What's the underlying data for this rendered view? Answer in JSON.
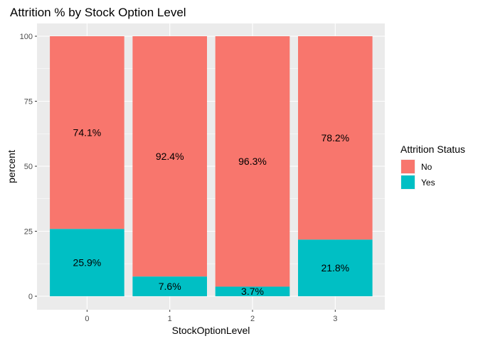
{
  "chart_data": {
    "type": "bar",
    "stacked": true,
    "title": "Attrition % by Stock Option Level",
    "xlabel": "StockOptionLevel",
    "ylabel": "percent",
    "categories": [
      "0",
      "1",
      "2",
      "3"
    ],
    "ylim": [
      0,
      100
    ],
    "yticks": [
      0,
      25,
      50,
      75,
      100
    ],
    "grid": true,
    "legend": {
      "title": "Attrition Status",
      "placement": "right"
    },
    "series": [
      {
        "name": "Yes",
        "color": "#00BFC4",
        "values": [
          25.9,
          7.6,
          3.7,
          21.8
        ],
        "labels": [
          "25.9%",
          "7.6%",
          "3.7%",
          "21.8%"
        ]
      },
      {
        "name": "No",
        "color": "#F8766D",
        "values": [
          74.1,
          92.4,
          96.3,
          78.2
        ],
        "labels": [
          "74.1%",
          "92.4%",
          "96.3%",
          "78.2%"
        ]
      }
    ],
    "legend_order": [
      "No",
      "Yes"
    ]
  }
}
